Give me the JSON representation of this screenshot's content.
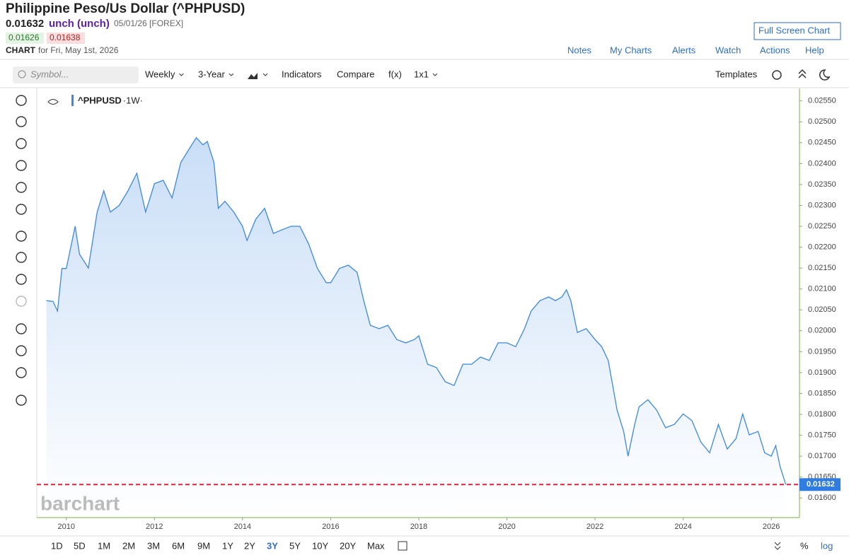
{
  "header": {
    "title": "Philippine Peso/Us Dollar (^PHPUSD)",
    "price": "0.01632",
    "change": "unch (unch)",
    "date": "05/01/26 [FOREX]",
    "bid": "0.01626",
    "ask": "0.01638",
    "chart_label": "CHART",
    "chart_date": "for Fri, May 1st, 2026",
    "full_screen": "Full Screen Chart",
    "links": [
      "Notes",
      "My Charts",
      "Alerts",
      "Watch",
      "Actions",
      "Help"
    ]
  },
  "toolbar": {
    "symbol_placeholder": "Symbol...",
    "items": [
      "Weekly",
      "3-Year",
      "Indicators",
      "Compare",
      "f(x)",
      "1x1"
    ],
    "templates": "Templates"
  },
  "periods": [
    "1D",
    "5D",
    "1M",
    "2M",
    "3M",
    "6M",
    "9M",
    "1Y",
    "2Y",
    "3Y",
    "5Y",
    "10Y",
    "20Y",
    "Max"
  ],
  "selected_period": "3Y",
  "scale_buttons": [
    "%",
    "log"
  ],
  "watermark": "barchart",
  "chart_data": {
    "type": "line",
    "interval_label": "·1W·",
    "x": [
      2009.55,
      2009.7,
      2009.8,
      2009.9,
      2010.0,
      2010.2,
      2010.3,
      2010.5,
      2010.7,
      2010.85,
      2011.0,
      2011.2,
      2011.4,
      2011.6,
      2011.8,
      2012.0,
      2012.2,
      2012.4,
      2012.6,
      2012.8,
      2012.95,
      2013.1,
      2013.2,
      2013.35,
      2013.45,
      2013.6,
      2013.8,
      2014.0,
      2014.1,
      2014.3,
      2014.5,
      2014.7,
      2014.9,
      2015.1,
      2015.3,
      2015.5,
      2015.7,
      2015.9,
      2016.0,
      2016.2,
      2016.4,
      2016.6,
      2016.75,
      2016.9,
      2017.1,
      2017.3,
      2017.5,
      2017.7,
      2017.9,
      2018.0,
      2018.2,
      2018.4,
      2018.6,
      2018.8,
      2019.0,
      2019.2,
      2019.4,
      2019.6,
      2019.8,
      2020.0,
      2020.2,
      2020.4,
      2020.55,
      2020.75,
      2020.95,
      2021.1,
      2021.25,
      2021.35,
      2021.45,
      2021.6,
      2021.8,
      2022.0,
      2022.15,
      2022.3,
      2022.5,
      2022.65,
      2022.75,
      2022.9,
      2023.0,
      2023.2,
      2023.4,
      2023.6,
      2023.8,
      2024.0,
      2024.2,
      2024.4,
      2024.6,
      2024.8,
      2025.0,
      2025.2,
      2025.35,
      2025.5,
      2025.7,
      2025.85,
      2026.0,
      2026.1,
      2026.2,
      2026.33
    ],
    "series": [
      {
        "name": "^PHPUSD",
        "color": "#3d87e0",
        "values": [
          0.02072,
          0.0207,
          0.02047,
          0.02149,
          0.02149,
          0.0225,
          0.02183,
          0.0215,
          0.02284,
          0.02335,
          0.02284,
          0.023,
          0.02335,
          0.02377,
          0.02284,
          0.02352,
          0.0236,
          0.02318,
          0.02403,
          0.02437,
          0.02462,
          0.02445,
          0.02453,
          0.02403,
          0.02293,
          0.0231,
          0.02284,
          0.0225,
          0.02216,
          0.02267,
          0.02293,
          0.02233,
          0.02242,
          0.0225,
          0.0225,
          0.02208,
          0.02149,
          0.02115,
          0.02115,
          0.02149,
          0.02157,
          0.0214,
          0.02072,
          0.02013,
          0.02005,
          0.02013,
          0.01979,
          0.01971,
          0.01979,
          0.01988,
          0.0192,
          0.01912,
          0.01878,
          0.01869,
          0.0192,
          0.0192,
          0.01937,
          0.01929,
          0.01971,
          0.01971,
          0.01962,
          0.02005,
          0.02047,
          0.02072,
          0.02081,
          0.02072,
          0.02081,
          0.02098,
          0.02072,
          0.01996,
          0.02005,
          0.01979,
          0.01962,
          0.01929,
          0.0181,
          0.01759,
          0.017,
          0.01776,
          0.01818,
          0.01835,
          0.0181,
          0.01768,
          0.01776,
          0.01801,
          0.01785,
          0.01734,
          0.01708,
          0.01776,
          0.01717,
          0.01742,
          0.01801,
          0.01751,
          0.01759,
          0.01708,
          0.017,
          0.01725,
          0.01675,
          0.01632
        ]
      }
    ],
    "reference_line": {
      "value": 0.01632,
      "label": "0.01632",
      "color": "#d9263a"
    },
    "xlim": [
      2009.33,
      2026.64
    ],
    "xticks": [
      2010,
      2012,
      2014,
      2016,
      2018,
      2020,
      2022,
      2024,
      2026
    ],
    "ylim": [
      0.01553,
      0.0258
    ],
    "yticks": [
      {
        "value": 0.016,
        "label": "0.01600"
      },
      {
        "value": 0.0165,
        "label": "0.01650"
      },
      {
        "value": 0.017,
        "label": "0.01700"
      },
      {
        "value": 0.0175,
        "label": "0.01750"
      },
      {
        "value": 0.018,
        "label": "0.01800"
      },
      {
        "value": 0.0185,
        "label": "0.01850"
      },
      {
        "value": 0.019,
        "label": "0.01900"
      },
      {
        "value": 0.0195,
        "label": "0.01950"
      },
      {
        "value": 0.02,
        "label": "0.02000"
      },
      {
        "value": 0.0205,
        "label": "0.02050"
      },
      {
        "value": 0.021,
        "label": "0.02100"
      },
      {
        "value": 0.0215,
        "label": "0.02150"
      },
      {
        "value": 0.022,
        "label": "0.02200"
      },
      {
        "value": 0.0225,
        "label": "0.02250"
      },
      {
        "value": 0.023,
        "label": "0.02300"
      },
      {
        "value": 0.0235,
        "label": "0.02350"
      },
      {
        "value": 0.024,
        "label": "0.02400"
      },
      {
        "value": 0.0245,
        "label": "0.02450"
      },
      {
        "value": 0.025,
        "label": "0.02500"
      },
      {
        "value": 0.0255,
        "label": "0.02550"
      }
    ]
  }
}
